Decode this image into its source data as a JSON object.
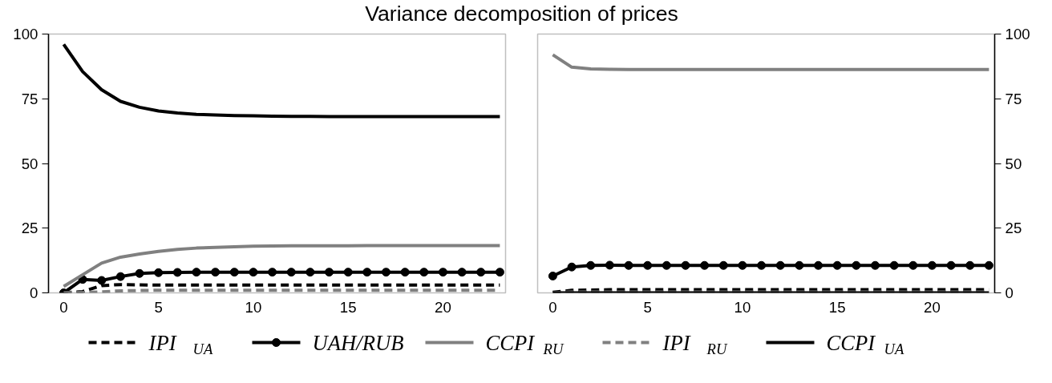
{
  "chart_data": [
    {
      "type": "line",
      "title": "Variance decomposition of prices",
      "x": [
        0,
        1,
        2,
        3,
        4,
        5,
        6,
        7,
        8,
        9,
        10,
        11,
        12,
        13,
        14,
        15,
        16,
        17,
        18,
        19,
        20,
        21,
        22,
        23
      ],
      "xlim": [
        -0.8,
        23.3
      ],
      "xticks": [
        0,
        5,
        10,
        15,
        20
      ],
      "ylim": [
        0,
        100
      ],
      "yticks": [
        0,
        25,
        50,
        75,
        100
      ],
      "grid": false,
      "legend": "bottom",
      "series": [
        {
          "name": "IPI$_{UA}$",
          "color": "#000000",
          "line_style": "dashed",
          "marker": "none",
          "values": [
            0,
            0.5,
            2.8,
            3.2,
            3.1,
            3,
            3,
            3,
            3,
            3,
            3,
            3,
            3,
            3,
            3,
            3,
            3,
            3,
            3,
            3,
            3,
            3,
            3,
            3
          ]
        },
        {
          "name": "UAH/RUB",
          "color": "#000000",
          "line_style": "solid",
          "marker": "circle",
          "values": [
            0,
            5.2,
            4.8,
            6.3,
            7.5,
            7.8,
            7.9,
            8,
            8,
            8,
            8,
            8,
            8,
            8,
            8,
            8,
            8,
            8,
            8,
            8,
            8,
            8,
            8,
            8
          ]
        },
        {
          "name": "CCPI$_{RU}$",
          "color": "#808080",
          "line_style": "solid",
          "marker": "none",
          "values": [
            2.5,
            7,
            11.5,
            13.8,
            15,
            16,
            16.8,
            17.3,
            17.6,
            17.8,
            18,
            18.1,
            18.2,
            18.2,
            18.2,
            18.2,
            18.3,
            18.3,
            18.3,
            18.3,
            18.3,
            18.3,
            18.3,
            18.3
          ]
        },
        {
          "name": "IPI$_{RU}$",
          "color": "#808080",
          "line_style": "dashed",
          "marker": "none",
          "values": [
            0,
            0.1,
            0.4,
            0.8,
            0.9,
            1,
            1,
            1,
            1,
            1,
            1,
            1,
            1,
            1,
            1,
            1,
            1,
            1,
            1,
            1,
            1,
            1,
            1,
            1
          ]
        },
        {
          "name": "CCPI$_{UA}$",
          "color": "#000000",
          "line_style": "solid",
          "marker": "none",
          "values": [
            96,
            85.5,
            78.5,
            74,
            71.7,
            70.3,
            69.5,
            69,
            68.7,
            68.5,
            68.4,
            68.3,
            68.2,
            68.2,
            68.1,
            68.1,
            68.1,
            68.1,
            68.1,
            68.1,
            68.1,
            68.1,
            68.1,
            68.1
          ]
        }
      ]
    },
    {
      "type": "line",
      "x": [
        0,
        1,
        2,
        3,
        4,
        5,
        6,
        7,
        8,
        9,
        10,
        11,
        12,
        13,
        14,
        15,
        16,
        17,
        18,
        19,
        20,
        21,
        22,
        23
      ],
      "xlim": [
        -0.8,
        23.3
      ],
      "xticks": [
        0,
        5,
        10,
        15,
        20
      ],
      "ylim": [
        0,
        100
      ],
      "yticks": [
        0,
        25,
        50,
        75,
        100
      ],
      "grid": false,
      "series": [
        {
          "name": "IPI$_{UA}$",
          "color": "#000000",
          "line_style": "dashed",
          "marker": "none",
          "values": [
            0.2,
            1,
            1.1,
            1.2,
            1.2,
            1.2,
            1.2,
            1.2,
            1.2,
            1.2,
            1.2,
            1.2,
            1.2,
            1.2,
            1.2,
            1.2,
            1.2,
            1.2,
            1.2,
            1.2,
            1.2,
            1.2,
            1.2,
            1.2
          ]
        },
        {
          "name": "UAH/RUB",
          "color": "#000000",
          "line_style": "solid",
          "marker": "circle",
          "values": [
            6.5,
            10,
            10.6,
            10.7,
            10.6,
            10.6,
            10.6,
            10.6,
            10.6,
            10.6,
            10.6,
            10.6,
            10.6,
            10.6,
            10.6,
            10.6,
            10.6,
            10.6,
            10.6,
            10.6,
            10.6,
            10.6,
            10.6,
            10.6
          ]
        },
        {
          "name": "CCPI$_{RU}$",
          "color": "#808080",
          "line_style": "solid",
          "marker": "none",
          "values": [
            92,
            87.2,
            86.5,
            86.4,
            86.3,
            86.3,
            86.3,
            86.3,
            86.3,
            86.3,
            86.3,
            86.3,
            86.3,
            86.3,
            86.3,
            86.3,
            86.3,
            86.3,
            86.3,
            86.3,
            86.3,
            86.3,
            86.3,
            86.3
          ]
        },
        {
          "name": "IPI$_{RU}$",
          "color": "#808080",
          "line_style": "dashed",
          "marker": "none",
          "values": [
            0.1,
            0.3,
            0.3,
            0.3,
            0.3,
            0.3,
            0.3,
            0.3,
            0.3,
            0.3,
            0.3,
            0.3,
            0.3,
            0.3,
            0.3,
            0.3,
            0.3,
            0.3,
            0.3,
            0.3,
            0.3,
            0.3,
            0.3,
            0.3
          ]
        },
        {
          "name": "CCPI$_{UA}$",
          "color": "#000000",
          "line_style": "solid",
          "marker": "none",
          "values": [
            0,
            0,
            0,
            0,
            0,
            0,
            0,
            0,
            0,
            0,
            0,
            0,
            0,
            0,
            0,
            0,
            0,
            0,
            0,
            0,
            0,
            0,
            0,
            0
          ]
        }
      ]
    }
  ]
}
